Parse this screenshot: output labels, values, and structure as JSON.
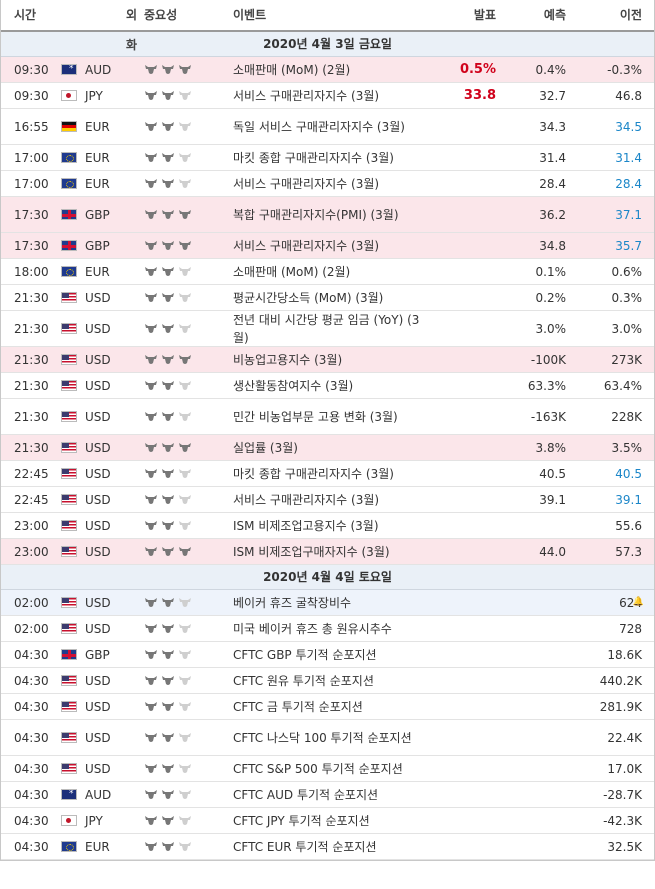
{
  "header": {
    "time": "시간",
    "currency": "외화",
    "importance": "중요성",
    "event": "이벤트",
    "actual": "발표",
    "forecast": "예측",
    "previous": "이전"
  },
  "days": [
    {
      "date": "2020년 4월 3일 금요일",
      "rows": [
        {
          "time": "09:30",
          "flag": "aud",
          "cur": "AUD",
          "imp": 3,
          "event": "소매판매 (MoM) (2월)",
          "actual": "0.5%",
          "forecast": "0.4%",
          "prev": "-0.3%",
          "hl": true,
          "prevBlue": false
        },
        {
          "time": "09:30",
          "flag": "jpy",
          "cur": "JPY",
          "imp": 2,
          "event": "서비스 구매관리자지수 (3월)",
          "actual": "33.8",
          "forecast": "32.7",
          "prev": "46.8",
          "hl": false,
          "prevBlue": false
        },
        {
          "time": "16:55",
          "flag": "deu",
          "cur": "EUR",
          "imp": 2,
          "event": "독일 서비스 구매관리자지수 (3월)",
          "actual": "",
          "forecast": "34.3",
          "prev": "34.5",
          "hl": false,
          "prevBlue": true
        },
        {
          "time": "17:00",
          "flag": "eur",
          "cur": "EUR",
          "imp": 2,
          "event": "마킷 종합 구매관리자지수 (3월)",
          "actual": "",
          "forecast": "31.4",
          "prev": "31.4",
          "hl": false,
          "prevBlue": true
        },
        {
          "time": "17:00",
          "flag": "eur",
          "cur": "EUR",
          "imp": 2,
          "event": "서비스 구매관리자지수 (3월)",
          "actual": "",
          "forecast": "28.4",
          "prev": "28.4",
          "hl": false,
          "prevBlue": true
        },
        {
          "time": "17:30",
          "flag": "gbp",
          "cur": "GBP",
          "imp": 3,
          "event": "복합 구매관리자지수(PMI) (3월)",
          "actual": "",
          "forecast": "36.2",
          "prev": "37.1",
          "hl": true,
          "prevBlue": true
        },
        {
          "time": "17:30",
          "flag": "gbp",
          "cur": "GBP",
          "imp": 3,
          "event": "서비스 구매관리자지수 (3월)",
          "actual": "",
          "forecast": "34.8",
          "prev": "35.7",
          "hl": true,
          "prevBlue": true
        },
        {
          "time": "18:00",
          "flag": "eur",
          "cur": "EUR",
          "imp": 2,
          "event": "소매판매 (MoM) (2월)",
          "actual": "",
          "forecast": "0.1%",
          "prev": "0.6%",
          "hl": false,
          "prevBlue": false
        },
        {
          "time": "21:30",
          "flag": "usd",
          "cur": "USD",
          "imp": 2,
          "event": "평균시간당소득 (MoM) (3월)",
          "actual": "",
          "forecast": "0.2%",
          "prev": "0.3%",
          "hl": false,
          "prevBlue": false
        },
        {
          "time": "21:30",
          "flag": "usd",
          "cur": "USD",
          "imp": 2,
          "event": "전년 대비 시간당 평균 임금 (YoY) (3월)",
          "actual": "",
          "forecast": "3.0%",
          "prev": "3.0%",
          "hl": false,
          "prevBlue": false
        },
        {
          "time": "21:30",
          "flag": "usd",
          "cur": "USD",
          "imp": 3,
          "event": "비농업고용지수 (3월)",
          "actual": "",
          "forecast": "-100K",
          "prev": "273K",
          "hl": true,
          "prevBlue": false
        },
        {
          "time": "21:30",
          "flag": "usd",
          "cur": "USD",
          "imp": 2,
          "event": "생산활동참여지수 (3월)",
          "actual": "",
          "forecast": "63.3%",
          "prev": "63.4%",
          "hl": false,
          "prevBlue": false
        },
        {
          "time": "21:30",
          "flag": "usd",
          "cur": "USD",
          "imp": 2,
          "event": "민간 비농업부문 고용 변화 (3월)",
          "actual": "",
          "forecast": "-163K",
          "prev": "228K",
          "hl": false,
          "prevBlue": false
        },
        {
          "time": "21:30",
          "flag": "usd",
          "cur": "USD",
          "imp": 3,
          "event": "실업률 (3월)",
          "actual": "",
          "forecast": "3.8%",
          "prev": "3.5%",
          "hl": true,
          "prevBlue": false
        },
        {
          "time": "22:45",
          "flag": "usd",
          "cur": "USD",
          "imp": 2,
          "event": "마킷 종합 구매관리자지수 (3월)",
          "actual": "",
          "forecast": "40.5",
          "prev": "40.5",
          "hl": false,
          "prevBlue": true
        },
        {
          "time": "22:45",
          "flag": "usd",
          "cur": "USD",
          "imp": 2,
          "event": "서비스 구매관리자지수 (3월)",
          "actual": "",
          "forecast": "39.1",
          "prev": "39.1",
          "hl": false,
          "prevBlue": true
        },
        {
          "time": "23:00",
          "flag": "usd",
          "cur": "USD",
          "imp": 2,
          "event": "ISM 비제조업고용지수 (3월)",
          "actual": "",
          "forecast": "",
          "prev": "55.6",
          "hl": false,
          "prevBlue": false
        },
        {
          "time": "23:00",
          "flag": "usd",
          "cur": "USD",
          "imp": 3,
          "event": "ISM 비제조업구매자지수 (3월)",
          "actual": "",
          "forecast": "44.0",
          "prev": "57.3",
          "hl": true,
          "prevBlue": false
        }
      ]
    },
    {
      "date": "2020년 4월 4일 토요일",
      "rows": [
        {
          "time": "02:00",
          "flag": "usd",
          "cur": "USD",
          "imp": 2,
          "event": "베이커 휴즈 굴착장비수",
          "actual": "",
          "forecast": "",
          "prev": "624",
          "hl": false,
          "blue": true,
          "bell": true,
          "prevBlue": false
        },
        {
          "time": "02:00",
          "flag": "usd",
          "cur": "USD",
          "imp": 2,
          "event": "미국 베이커 휴즈 총 원유시추수",
          "actual": "",
          "forecast": "",
          "prev": "728",
          "hl": false,
          "prevBlue": false
        },
        {
          "time": "04:30",
          "flag": "gbp",
          "cur": "GBP",
          "imp": 2,
          "event": "CFTC GBP 투기적 순포지션",
          "actual": "",
          "forecast": "",
          "prev": "18.6K",
          "hl": false,
          "prevBlue": false
        },
        {
          "time": "04:30",
          "flag": "usd",
          "cur": "USD",
          "imp": 2,
          "event": "CFTC 원유 투기적 순포지션",
          "actual": "",
          "forecast": "",
          "prev": "440.2K",
          "hl": false,
          "prevBlue": false
        },
        {
          "time": "04:30",
          "flag": "usd",
          "cur": "USD",
          "imp": 2,
          "event": "CFTC 금 투기적 순포지션",
          "actual": "",
          "forecast": "",
          "prev": "281.9K",
          "hl": false,
          "prevBlue": false
        },
        {
          "time": "04:30",
          "flag": "usd",
          "cur": "USD",
          "imp": 2,
          "event": "CFTC 나스닥 100 투기적 순포지션",
          "actual": "",
          "forecast": "",
          "prev": "22.4K",
          "hl": false,
          "prevBlue": false
        },
        {
          "time": "04:30",
          "flag": "usd",
          "cur": "USD",
          "imp": 2,
          "event": "CFTC S&P 500 투기적 순포지션",
          "actual": "",
          "forecast": "",
          "prev": "17.0K",
          "hl": false,
          "prevBlue": false
        },
        {
          "time": "04:30",
          "flag": "aud",
          "cur": "AUD",
          "imp": 2,
          "event": "CFTC AUD 투기적 순포지션",
          "actual": "",
          "forecast": "",
          "prev": "-28.7K",
          "hl": false,
          "prevBlue": false
        },
        {
          "time": "04:30",
          "flag": "jpy",
          "cur": "JPY",
          "imp": 2,
          "event": "CFTC JPY 투기적 순포지션",
          "actual": "",
          "forecast": "",
          "prev": "-42.3K",
          "hl": false,
          "prevBlue": false
        },
        {
          "time": "04:30",
          "flag": "eur",
          "cur": "EUR",
          "imp": 2,
          "event": "CFTC EUR 투기적 순포지션",
          "actual": "",
          "forecast": "",
          "prev": "32.5K",
          "hl": false,
          "prevBlue": false
        }
      ]
    }
  ],
  "colors": {
    "highlight_row": "#fbe6ea",
    "actual_red": "#d0021b",
    "prev_blue": "#1b86c8",
    "date_bar": "#eaf0f7"
  },
  "icons": {
    "importance": "bull-icon",
    "bell": "bell-plus-icon"
  }
}
